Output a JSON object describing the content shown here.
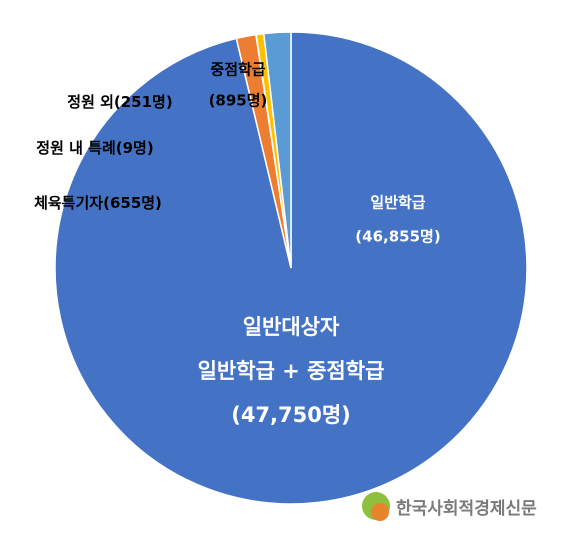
{
  "chart_data": {
    "type": "pie",
    "categories": [
      "일반학급",
      "체육특기자",
      "정원 내 특례",
      "정원 외",
      "중점학급"
    ],
    "values": [
      46855,
      655,
      9,
      251,
      895
    ],
    "value_labels": [
      "(46,855명)",
      "(655명)",
      "(9명)",
      "(251명)",
      "(895명)"
    ],
    "colors": [
      "#4472c4",
      "#ed7d31",
      "#a5a5a5",
      "#ffc000",
      "#5b9bd5"
    ],
    "annotations": [
      "일반대상자",
      "일반학급 + 중점학급",
      "(47,750명)"
    ]
  },
  "watermark": "한국사회적경제신문"
}
